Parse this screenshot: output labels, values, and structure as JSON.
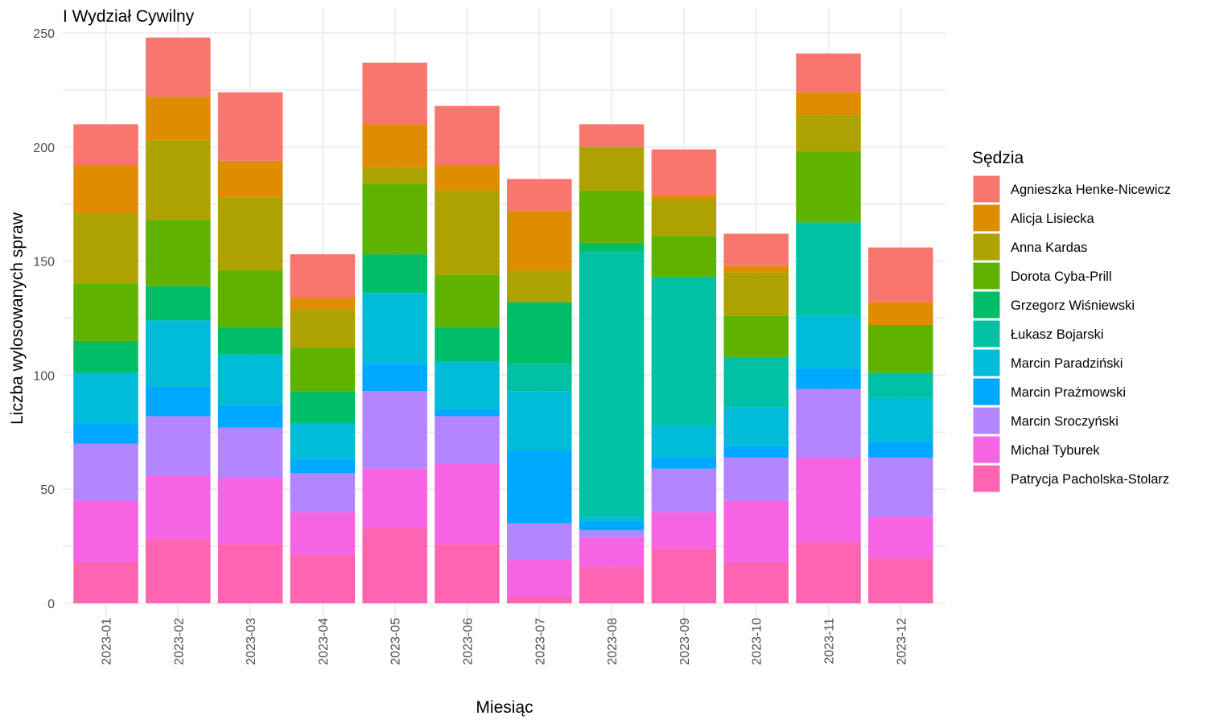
{
  "chart_data": {
    "type": "bar",
    "stacked": true,
    "title": "I Wydział Cywilny",
    "xlabel": "Miesiąc",
    "ylabel": "Liczba wylosowanych spraw",
    "ylim": [
      0,
      260
    ],
    "yticks": [
      0,
      50,
      100,
      150,
      200,
      250
    ],
    "grid": true,
    "legend_title": "Sędzia",
    "legend_position": "right",
    "categories": [
      "2023-01",
      "2023-02",
      "2023-03",
      "2023-04",
      "2023-05",
      "2023-06",
      "2023-07",
      "2023-08",
      "2023-09",
      "2023-10",
      "2023-11",
      "2023-12"
    ],
    "series": [
      {
        "name": "Patrycja Pacholska-Stolarz",
        "color": "#FF64B0",
        "values": [
          18,
          28,
          26,
          21,
          33,
          26,
          3,
          16,
          24,
          18,
          27,
          20
        ]
      },
      {
        "name": "Michał Tyburek",
        "color": "#F564E3",
        "values": [
          27,
          28,
          29,
          19,
          26,
          35,
          16,
          13,
          16,
          27,
          37,
          18
        ]
      },
      {
        "name": "Marcin Sroczyński",
        "color": "#B385FF",
        "values": [
          25,
          26,
          22,
          17,
          34,
          21,
          16,
          3,
          19,
          19,
          30,
          26
        ]
      },
      {
        "name": "Marcin Prażmowski",
        "color": "#00A9FF",
        "values": [
          9,
          13,
          10,
          6,
          12,
          3,
          32,
          4,
          5,
          5,
          9,
          7
        ]
      },
      {
        "name": "Marcin Paradziński",
        "color": "#00BCD8",
        "values": [
          22,
          29,
          22,
          16,
          31,
          21,
          26,
          2,
          14,
          17,
          23,
          19
        ]
      },
      {
        "name": "Łukasz Bojarski",
        "color": "#00C1A3",
        "values": [
          0,
          0,
          0,
          0,
          0,
          0,
          12,
          116,
          65,
          22,
          41,
          11
        ]
      },
      {
        "name": "Grzegorz Wiśniewski",
        "color": "#00BE67",
        "values": [
          14,
          15,
          12,
          14,
          17,
          15,
          27,
          4,
          0,
          0,
          0,
          0
        ]
      },
      {
        "name": "Dorota Cyba-Prill",
        "color": "#5EB300",
        "values": [
          25,
          29,
          25,
          19,
          31,
          23,
          0,
          23,
          18,
          18,
          31,
          21
        ]
      },
      {
        "name": "Anna Kardas",
        "color": "#ADA200",
        "values": [
          31,
          35,
          32,
          17,
          7,
          37,
          14,
          19,
          16,
          19,
          16,
          0
        ]
      },
      {
        "name": "Alicja Lisiecka",
        "color": "#DE8C00",
        "values": [
          21,
          19,
          16,
          5,
          19,
          11,
          26,
          0,
          2,
          3,
          10,
          10
        ]
      },
      {
        "name": "Agnieszka Henke-Nicewicz",
        "color": "#F8766D",
        "values": [
          18,
          26,
          30,
          19,
          27,
          26,
          14,
          10,
          20,
          14,
          17,
          24
        ]
      }
    ]
  },
  "legend_order": [
    "Agnieszka Henke-Nicewicz",
    "Alicja Lisiecka",
    "Anna Kardas",
    "Dorota Cyba-Prill",
    "Grzegorz Wiśniewski",
    "Łukasz Bojarski",
    "Marcin Paradziński",
    "Marcin Prażmowski",
    "Marcin Sroczyński",
    "Michał Tyburek",
    "Patrycja Pacholska-Stolarz"
  ]
}
